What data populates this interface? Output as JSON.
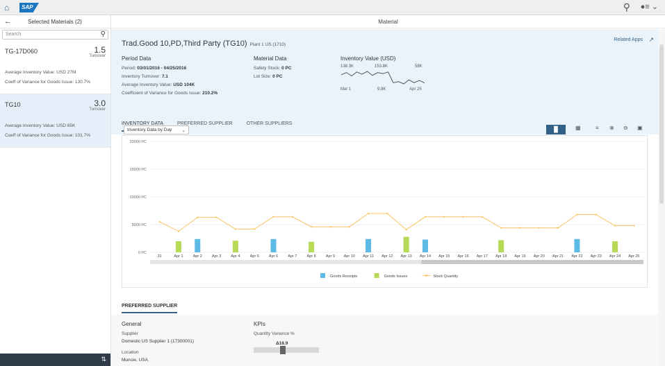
{
  "shell": {
    "logo": "SAP"
  },
  "list": {
    "title": "Selected Materials (2)",
    "search_placeholder": "Search",
    "items": [
      {
        "name": "TG-17D060",
        "value": "1.5",
        "unit": "Turnover",
        "line1": "Average Inventory Value: USD 27M",
        "line2": "Coeff of Variance for Goods Issue: 130.7%"
      },
      {
        "name": "TG10",
        "value": "3.0",
        "unit": "Turnover",
        "line1": "Average Inventory Value: USD 65K",
        "line2": "Coeff of Variance for Goods Issue: 101.7%"
      }
    ]
  },
  "header": {
    "title": "Material"
  },
  "object": {
    "title": "Trad.Good 10,PD,Third Party (TG10)",
    "plant": "Plant 1 US (1710)",
    "related_apps": "Related Apps",
    "period": {
      "heading": "Period Data",
      "period_label": "Period:",
      "period_value": "03/01/2016 - 04/25/2016",
      "turnover_label": "Inventory Turnover:",
      "turnover_value": "7.1",
      "avg_label": "Average Inventory Value:",
      "avg_value": "USD 104K",
      "coeff_label": "Coefficient of Variance for Goods Issue:",
      "coeff_value": "210.2%"
    },
    "material": {
      "heading": "Material Data",
      "safety_label": "Safety Stock:",
      "safety_value": "0 PC",
      "lot_label": "Lot Size:",
      "lot_value": "0 PC"
    },
    "inv_value": {
      "heading": "Inventory Value (USD)",
      "top1": "138.3K",
      "top2": "153.8K",
      "top3": "58K",
      "bot1": "Mar 1",
      "bot2": "9.8K",
      "bot3": "Apr 25",
      "sparkline": [
        130,
        150,
        120,
        155,
        135,
        160,
        125,
        150,
        140,
        155,
        60,
        70,
        50,
        85,
        60,
        80,
        58
      ]
    }
  },
  "tabs": [
    "INVENTORY DATA",
    "PREFERRED SUPPLIER",
    "OTHER SUPPLIERS"
  ],
  "dropdown": {
    "value": "Inventory Data by Day"
  },
  "chart_data": {
    "type": "bar",
    "categories": [
      "31",
      "Apr 1",
      "Apr 2",
      "Apr 3",
      "Apr 4",
      "Apr 5",
      "Apr 6",
      "Apr 7",
      "Apr 8",
      "Apr 9",
      "Apr 10",
      "Apr 11",
      "Apr 12",
      "Apr 13",
      "Apr 14",
      "Apr 15",
      "Apr 16",
      "Apr 17",
      "Apr 18",
      "Apr 19",
      "Apr 20",
      "Apr 21",
      "Apr 22",
      "Apr 23",
      "Apr 24",
      "Apr 25"
    ],
    "yticks": [
      "20000 PC",
      "15000 PC",
      "10000 PC",
      "5000 PC",
      "0 PC"
    ],
    "ylim": [
      0,
      20000
    ],
    "series": [
      {
        "name": "Goods Receipts",
        "type": "bar",
        "color": "#5cbae5",
        "values": [
          0,
          0,
          2400,
          0,
          0,
          0,
          2400,
          0,
          0,
          0,
          0,
          2400,
          0,
          0,
          2300,
          0,
          0,
          0,
          0,
          0,
          0,
          0,
          2400,
          0,
          0,
          0
        ]
      },
      {
        "name": "Goods Issues",
        "type": "bar",
        "color": "#b6d957",
        "values": [
          0,
          2000,
          0,
          0,
          2100,
          0,
          0,
          0,
          1900,
          0,
          0,
          0,
          0,
          2800,
          0,
          0,
          0,
          0,
          2200,
          0,
          0,
          0,
          0,
          0,
          2000,
          0
        ]
      },
      {
        "name": "Stock Quantity",
        "type": "line",
        "color": "#fac364",
        "values": [
          5500,
          3800,
          6300,
          6300,
          4200,
          4200,
          6400,
          6400,
          4600,
          4600,
          4600,
          7000,
          7000,
          4100,
          6400,
          6400,
          6400,
          6400,
          4400,
          4400,
          4400,
          4400,
          6800,
          6800,
          4800,
          4800
        ]
      }
    ]
  },
  "preferred": {
    "section": "PREFERRED SUPPLIER",
    "general": "General",
    "supplier_label": "Supplier",
    "supplier_value": "Domestic US Supplier 1 (17300001)",
    "location_label": "Location",
    "location_value": "Muncie, USA",
    "kpis": "KPIs",
    "qv_label": "Quantity Variance %",
    "qv_value": "Δ18.9"
  }
}
